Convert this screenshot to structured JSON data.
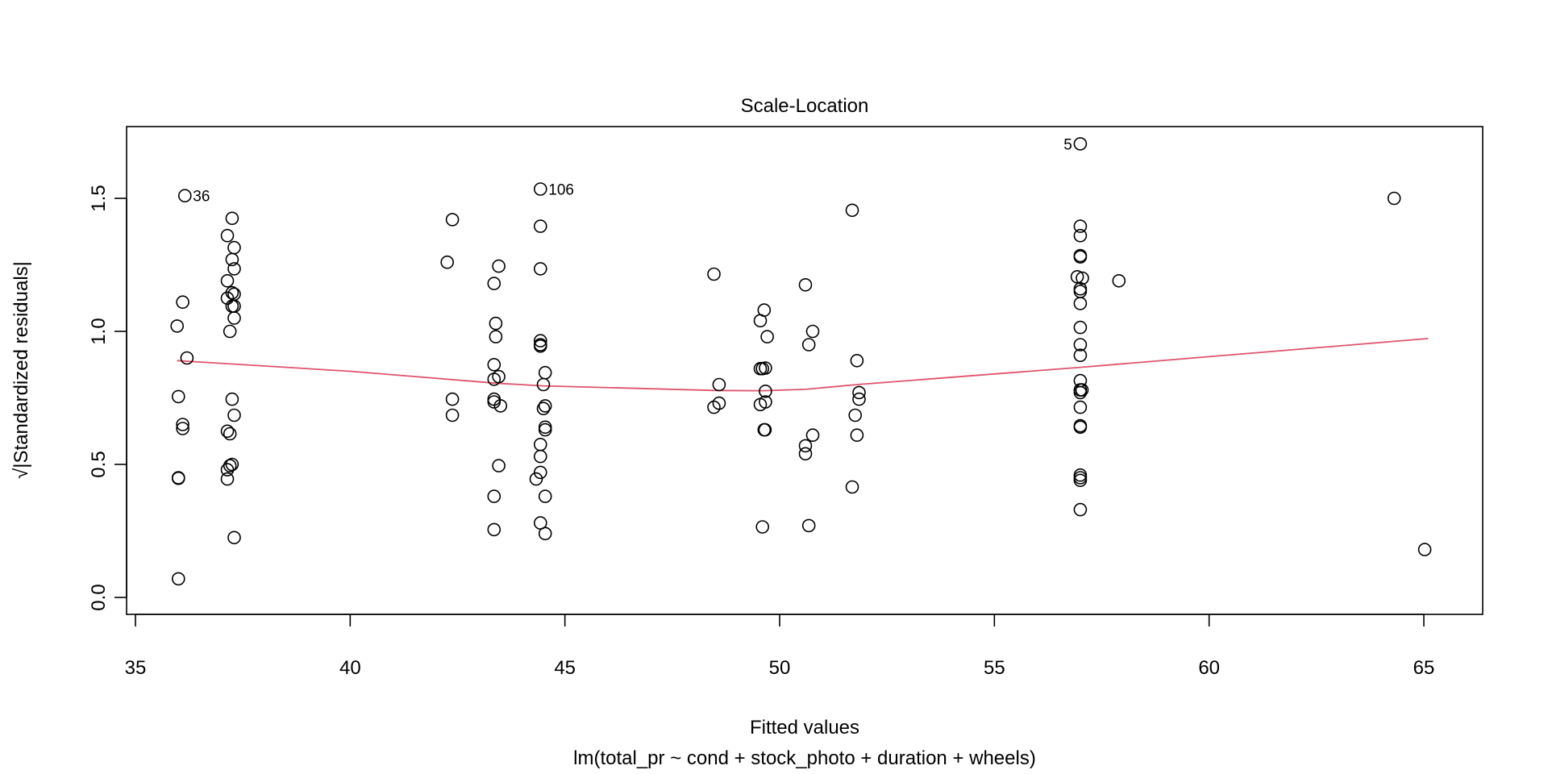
{
  "chart_data": {
    "type": "scatter",
    "title": "Scale-Location",
    "xlabel": "Fitted values",
    "subtitle": "lm(total_pr ~ cond + stock_photo + duration + wheels)",
    "ylabel": "√|Standardized residuals|",
    "xlim": [
      35,
      66.5
    ],
    "ylim": [
      -0.03,
      1.78
    ],
    "xticks": [
      "35",
      "40",
      "45",
      "50",
      "55",
      "60",
      "65"
    ],
    "yticks": [
      "0.0",
      "0.5",
      "1.0",
      "1.5"
    ],
    "grid": false,
    "point_color": "#000000",
    "smooth_color": "#DF536B",
    "points": [
      [
        35.97,
        1.02
      ],
      [
        36.1,
        1.11
      ],
      [
        36.15,
        1.51
      ],
      [
        36.2,
        0.9
      ],
      [
        36.0,
        0.755
      ],
      [
        36.1,
        0.65
      ],
      [
        36.1,
        0.635
      ],
      [
        36.0,
        0.45
      ],
      [
        36.0,
        0.448
      ],
      [
        36.0,
        0.07
      ],
      [
        37.25,
        1.425
      ],
      [
        37.14,
        1.36
      ],
      [
        37.3,
        1.315
      ],
      [
        37.25,
        1.27
      ],
      [
        37.3,
        1.235
      ],
      [
        37.14,
        1.19
      ],
      [
        37.25,
        1.145
      ],
      [
        37.3,
        1.14
      ],
      [
        37.14,
        1.125
      ],
      [
        37.25,
        1.095
      ],
      [
        37.3,
        1.095
      ],
      [
        37.3,
        1.05
      ],
      [
        37.2,
        1.0
      ],
      [
        37.25,
        0.745
      ],
      [
        37.3,
        0.685
      ],
      [
        37.14,
        0.625
      ],
      [
        37.2,
        0.615
      ],
      [
        37.25,
        0.5
      ],
      [
        37.2,
        0.495
      ],
      [
        37.14,
        0.48
      ],
      [
        37.14,
        0.445
      ],
      [
        37.3,
        0.225
      ],
      [
        42.26,
        1.26
      ],
      [
        42.38,
        1.42
      ],
      [
        42.38,
        0.745
      ],
      [
        42.38,
        0.685
      ],
      [
        43.35,
        1.18
      ],
      [
        43.46,
        1.245
      ],
      [
        43.39,
        1.03
      ],
      [
        43.39,
        0.98
      ],
      [
        43.35,
        0.875
      ],
      [
        43.35,
        0.82
      ],
      [
        43.46,
        0.83
      ],
      [
        43.35,
        0.745
      ],
      [
        43.35,
        0.735
      ],
      [
        43.5,
        0.72
      ],
      [
        43.46,
        0.495
      ],
      [
        43.35,
        0.38
      ],
      [
        43.35,
        0.255
      ],
      [
        44.43,
        1.535
      ],
      [
        44.43,
        1.395
      ],
      [
        44.43,
        1.235
      ],
      [
        44.43,
        0.965
      ],
      [
        44.43,
        0.95
      ],
      [
        44.43,
        0.945
      ],
      [
        44.54,
        0.845
      ],
      [
        44.5,
        0.8
      ],
      [
        44.54,
        0.72
      ],
      [
        44.5,
        0.71
      ],
      [
        44.54,
        0.64
      ],
      [
        44.54,
        0.63
      ],
      [
        44.43,
        0.575
      ],
      [
        44.43,
        0.53
      ],
      [
        44.43,
        0.47
      ],
      [
        44.33,
        0.445
      ],
      [
        44.54,
        0.38
      ],
      [
        44.43,
        0.28
      ],
      [
        44.54,
        0.24
      ],
      [
        48.47,
        1.215
      ],
      [
        48.59,
        0.8
      ],
      [
        48.47,
        0.715
      ],
      [
        48.59,
        0.73
      ],
      [
        49.64,
        1.08
      ],
      [
        49.55,
        1.04
      ],
      [
        49.71,
        0.98
      ],
      [
        49.55,
        0.86
      ],
      [
        49.6,
        0.86
      ],
      [
        49.67,
        0.862
      ],
      [
        49.67,
        0.775
      ],
      [
        49.67,
        0.735
      ],
      [
        49.55,
        0.725
      ],
      [
        49.64,
        0.63
      ],
      [
        49.66,
        0.63
      ],
      [
        49.6,
        0.265
      ],
      [
        50.6,
        1.175
      ],
      [
        50.77,
        1.0
      ],
      [
        50.68,
        0.95
      ],
      [
        50.6,
        0.57
      ],
      [
        50.77,
        0.61
      ],
      [
        50.6,
        0.54
      ],
      [
        50.68,
        0.27
      ],
      [
        51.69,
        1.455
      ],
      [
        51.8,
        0.89
      ],
      [
        51.85,
        0.77
      ],
      [
        51.85,
        0.745
      ],
      [
        51.76,
        0.685
      ],
      [
        51.8,
        0.61
      ],
      [
        51.69,
        0.415
      ],
      [
        57.0,
        1.705
      ],
      [
        57.0,
        1.395
      ],
      [
        57.0,
        1.36
      ],
      [
        57.0,
        1.285
      ],
      [
        57.0,
        1.28
      ],
      [
        56.93,
        1.205
      ],
      [
        57.05,
        1.2
      ],
      [
        57.0,
        1.16
      ],
      [
        57.0,
        1.15
      ],
      [
        57.0,
        1.105
      ],
      [
        57.0,
        1.015
      ],
      [
        57.0,
        0.95
      ],
      [
        57.0,
        0.91
      ],
      [
        57.0,
        0.815
      ],
      [
        57.0,
        0.78
      ],
      [
        57.04,
        0.78
      ],
      [
        57.0,
        0.77
      ],
      [
        57.0,
        0.715
      ],
      [
        57.0,
        0.645
      ],
      [
        57.0,
        0.64
      ],
      [
        57.0,
        0.46
      ],
      [
        57.0,
        0.45
      ],
      [
        57.0,
        0.44
      ],
      [
        57.0,
        0.33
      ],
      [
        57.9,
        1.19
      ],
      [
        64.31,
        1.5
      ],
      [
        65.02,
        0.18
      ]
    ],
    "point_labels": [
      {
        "text": "36",
        "x": 36.15,
        "y": 1.51,
        "side": "right"
      },
      {
        "text": "106",
        "x": 44.43,
        "y": 1.535,
        "side": "right"
      },
      {
        "text": "5",
        "x": 57.0,
        "y": 1.705,
        "side": "left"
      }
    ],
    "smooth": [
      [
        35.97,
        0.89
      ],
      [
        40.0,
        0.85
      ],
      [
        43.4,
        0.805
      ],
      [
        44.5,
        0.795
      ],
      [
        48.5,
        0.778
      ],
      [
        49.6,
        0.777
      ],
      [
        50.6,
        0.782
      ],
      [
        51.8,
        0.8
      ],
      [
        57.0,
        0.865
      ],
      [
        65.1,
        0.973
      ]
    ]
  }
}
